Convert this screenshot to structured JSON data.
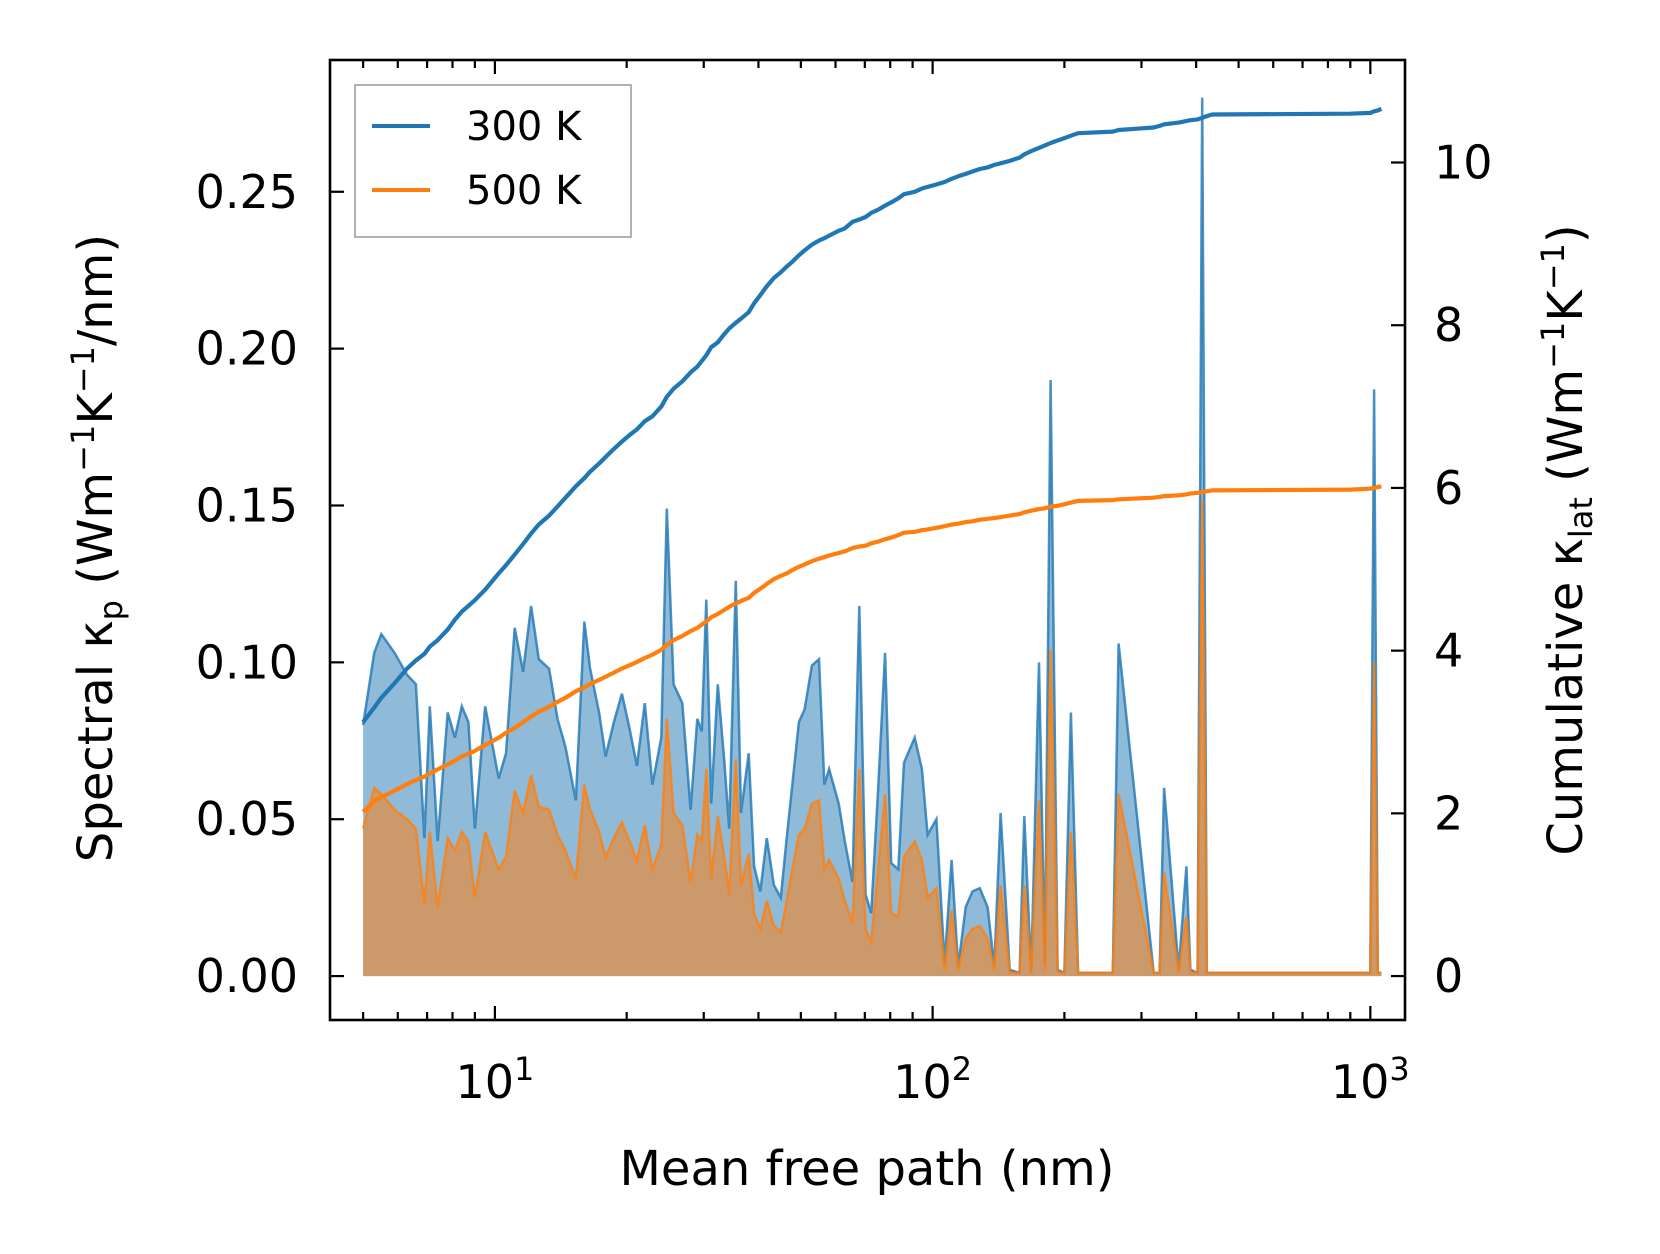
{
  "chart_data": {
    "type": "line",
    "title": "",
    "xlabel": "Mean free path (nm)",
    "ylabel_left": "Spectral κ",
    "ylabel_left_sub": "p",
    "ylabel_left_unit": {
      "open": " (Wm",
      "exp1": "−1",
      "mid": "K",
      "exp2": "−1",
      "close": "/nm)"
    },
    "ylabel_right": "Cumulative κ",
    "ylabel_right_sub": "lat",
    "ylabel_right_unit": {
      "open": " (Wm",
      "exp1": "−1",
      "mid": "K",
      "exp2": "−1",
      "close": ")"
    },
    "xscale": "log",
    "xlim": [
      4.2,
      1200
    ],
    "ylim_left": [
      -0.014,
      0.292
    ],
    "ylim_right": [
      -0.54,
      11.26
    ],
    "x_ticks": [
      {
        "value": 10,
        "base": "10",
        "exp": "1"
      },
      {
        "value": 100,
        "base": "10",
        "exp": "2"
      },
      {
        "value": 1000,
        "base": "10",
        "exp": "3"
      }
    ],
    "y_left_ticks": [
      {
        "value": 0.0,
        "label": "0.00"
      },
      {
        "value": 0.05,
        "label": "0.05"
      },
      {
        "value": 0.1,
        "label": "0.10"
      },
      {
        "value": 0.15,
        "label": "0.15"
      },
      {
        "value": 0.2,
        "label": "0.20"
      },
      {
        "value": 0.25,
        "label": "0.25"
      }
    ],
    "y_right_ticks": [
      {
        "value": 0,
        "label": "0"
      },
      {
        "value": 2,
        "label": "2"
      },
      {
        "value": 4,
        "label": "4"
      },
      {
        "value": 6,
        "label": "6"
      },
      {
        "value": 8,
        "label": "8"
      },
      {
        "value": 10,
        "label": "10"
      }
    ],
    "legend": {
      "location": "upper-left",
      "entries": [
        {
          "label": "300 K",
          "color": "#1f77b4"
        },
        {
          "label": "500 K",
          "color": "#ff7f0e"
        }
      ]
    },
    "series": [
      {
        "name": "300 K",
        "color": "#1f77b4",
        "spectral": {
          "x": [
            5.0,
            5.3,
            5.5,
            5.9,
            6.3,
            6.6,
            6.9,
            7.1,
            7.4,
            7.8,
            8.1,
            8.4,
            8.7,
            9.0,
            9.5,
            10.2,
            10.6,
            11.1,
            11.6,
            12.1,
            12.6,
            13.3,
            13.9,
            14.5,
            15.3,
            16.0,
            16.5,
            17.3,
            17.9,
            18.7,
            19.5,
            20.3,
            21.1,
            22.0,
            22.9,
            24.0,
            24.7,
            25.6,
            26.8,
            28.0,
            29.0,
            29.7,
            30.4,
            31.2,
            32.3,
            33.4,
            34.3,
            35.5,
            36.5,
            38.0,
            39.1,
            40.4,
            41.8,
            43.4,
            45.0,
            46.4,
            47.8,
            49.5,
            51.0,
            53.0,
            55.0,
            56.6,
            58.0,
            61.0,
            63.0,
            65.6,
            68.0,
            70.3,
            72.4,
            75.1,
            77.9,
            80.4,
            83.5,
            86.0,
            91.0,
            94.5,
            97.4,
            102.0,
            106.5,
            110.5,
            114.4,
            119.0,
            123.3,
            128.2,
            133.5,
            138.3,
            143.0,
            150.0,
            158.0,
            162.0,
            168.0,
            175.0,
            180.5,
            186.0,
            193.0,
            200.0,
            207.0,
            215.0,
            258.0,
            266.0,
            320.0,
            330.0,
            338.0,
            365.0,
            380.0,
            388.0,
            403.0,
            413.0,
            423.0,
            435.0,
            900.0,
            1000.0,
            1020.0,
            1040.0,
            1060.0
          ],
          "y": [
            0.08,
            0.103,
            0.109,
            0.103,
            0.096,
            0.093,
            0.044,
            0.086,
            0.043,
            0.084,
            0.076,
            0.086,
            0.081,
            0.047,
            0.086,
            0.063,
            0.071,
            0.111,
            0.097,
            0.118,
            0.101,
            0.098,
            0.082,
            0.073,
            0.056,
            0.113,
            0.098,
            0.084,
            0.07,
            0.081,
            0.09,
            0.079,
            0.067,
            0.087,
            0.061,
            0.076,
            0.149,
            0.093,
            0.087,
            0.053,
            0.082,
            0.078,
            0.12,
            0.055,
            0.093,
            0.069,
            0.047,
            0.126,
            0.052,
            0.071,
            0.035,
            0.027,
            0.044,
            0.029,
            0.025,
            0.044,
            0.061,
            0.081,
            0.085,
            0.099,
            0.101,
            0.061,
            0.066,
            0.055,
            0.043,
            0.03,
            0.118,
            0.026,
            0.02,
            0.06,
            0.103,
            0.036,
            0.034,
            0.068,
            0.076,
            0.066,
            0.045,
            0.05,
            0.004,
            0.037,
            0.003,
            0.022,
            0.027,
            0.028,
            0.022,
            0.003,
            0.052,
            0.002,
            0.001,
            0.051,
            0.001,
            0.1,
            0.004,
            0.19,
            0.002,
            0.001,
            0.084,
            0.001,
            0.001,
            0.106,
            0.001,
            0.001,
            0.06,
            0.002,
            0.035,
            0.002,
            0.001,
            0.28,
            0.001,
            0.001,
            0.001,
            0.001,
            0.187,
            0.001,
            0.001
          ]
        },
        "cumulative": {
          "x": [
            5.0,
            5.3,
            5.5,
            5.9,
            6.3,
            6.6,
            6.9,
            7.1,
            7.4,
            7.8,
            8.1,
            8.4,
            8.7,
            9.0,
            9.5,
            10.2,
            10.6,
            11.1,
            11.6,
            12.1,
            12.6,
            13.3,
            13.9,
            14.5,
            15.3,
            16.0,
            16.5,
            17.3,
            17.9,
            18.7,
            19.5,
            20.3,
            21.1,
            22.0,
            22.9,
            24.0,
            24.7,
            25.6,
            26.8,
            28.0,
            29.0,
            29.7,
            30.4,
            31.2,
            32.3,
            33.4,
            34.3,
            35.5,
            36.5,
            38.0,
            39.1,
            40.4,
            41.8,
            43.4,
            45.0,
            46.4,
            47.8,
            49.5,
            51.0,
            53.0,
            55.0,
            56.6,
            58.0,
            61.0,
            63.0,
            65.6,
            68.0,
            70.3,
            72.4,
            75.1,
            77.9,
            80.4,
            83.5,
            86.0,
            91.0,
            94.5,
            97.4,
            102.0,
            106.5,
            110.5,
            114.4,
            119.0,
            123.3,
            128.2,
            133.5,
            138.3,
            143.0,
            150.0,
            158.0,
            162.0,
            168.0,
            175.0,
            180.5,
            186.0,
            193.0,
            200.0,
            207.0,
            215.0,
            258.0,
            266.0,
            320.0,
            330.0,
            338.0,
            365.0,
            380.0,
            388.0,
            403.0,
            413.0,
            423.0,
            435.0,
            900.0,
            1000.0,
            1020.0,
            1040.0,
            1060.0
          ],
          "y": [
            3.12,
            3.3,
            3.42,
            3.6,
            3.78,
            3.88,
            3.96,
            4.05,
            4.13,
            4.26,
            4.38,
            4.48,
            4.55,
            4.62,
            4.75,
            4.95,
            5.05,
            5.18,
            5.31,
            5.44,
            5.55,
            5.66,
            5.77,
            5.88,
            6.02,
            6.12,
            6.2,
            6.3,
            6.38,
            6.48,
            6.57,
            6.65,
            6.72,
            6.82,
            6.88,
            7.0,
            7.12,
            7.22,
            7.31,
            7.42,
            7.49,
            7.56,
            7.63,
            7.73,
            7.79,
            7.89,
            7.96,
            8.03,
            8.08,
            8.16,
            8.27,
            8.37,
            8.48,
            8.58,
            8.65,
            8.72,
            8.78,
            8.86,
            8.92,
            8.99,
            9.04,
            9.07,
            9.1,
            9.16,
            9.19,
            9.27,
            9.3,
            9.33,
            9.38,
            9.42,
            9.47,
            9.51,
            9.56,
            9.61,
            9.64,
            9.68,
            9.7,
            9.73,
            9.76,
            9.8,
            9.83,
            9.86,
            9.89,
            9.92,
            9.94,
            9.97,
            9.99,
            10.02,
            10.06,
            10.1,
            10.14,
            10.18,
            10.21,
            10.24,
            10.27,
            10.3,
            10.33,
            10.36,
            10.38,
            10.4,
            10.43,
            10.45,
            10.47,
            10.49,
            10.51,
            10.52,
            10.53,
            10.55,
            10.57,
            10.59,
            10.6,
            10.61,
            10.63,
            10.64,
            10.66
          ]
        }
      },
      {
        "name": "500 K",
        "color": "#ff7f0e",
        "spectral": {
          "x": [
            5.0,
            5.3,
            5.5,
            5.9,
            6.3,
            6.6,
            6.9,
            7.1,
            7.4,
            7.8,
            8.1,
            8.4,
            8.7,
            9.0,
            9.5,
            10.2,
            10.6,
            11.1,
            11.6,
            12.1,
            12.6,
            13.3,
            13.9,
            14.5,
            15.3,
            16.0,
            16.5,
            17.3,
            17.9,
            18.7,
            19.5,
            20.3,
            21.1,
            22.0,
            22.9,
            24.0,
            24.7,
            25.6,
            26.8,
            28.0,
            29.0,
            29.7,
            30.4,
            31.2,
            32.3,
            33.4,
            34.3,
            35.5,
            36.5,
            38.0,
            39.1,
            40.4,
            41.8,
            43.4,
            45.0,
            46.4,
            47.8,
            49.5,
            51.0,
            53.0,
            55.0,
            56.6,
            58.0,
            61.0,
            63.0,
            65.6,
            68.0,
            70.3,
            72.4,
            75.1,
            77.9,
            80.4,
            83.5,
            86.0,
            91.0,
            94.5,
            97.4,
            102.0,
            106.5,
            110.5,
            114.4,
            119.0,
            123.3,
            128.2,
            133.5,
            138.3,
            143.0,
            150.0,
            158.0,
            162.0,
            168.0,
            175.0,
            180.5,
            186.0,
            193.0,
            200.0,
            207.0,
            215.0,
            258.0,
            266.0,
            320.0,
            330.0,
            338.0,
            365.0,
            380.0,
            388.0,
            403.0,
            413.0,
            423.0,
            435.0,
            900.0,
            1000.0,
            1020.0,
            1040.0,
            1060.0
          ],
          "y": [
            0.047,
            0.06,
            0.058,
            0.053,
            0.05,
            0.047,
            0.023,
            0.046,
            0.022,
            0.044,
            0.04,
            0.046,
            0.043,
            0.025,
            0.046,
            0.034,
            0.038,
            0.059,
            0.052,
            0.064,
            0.054,
            0.053,
            0.045,
            0.04,
            0.031,
            0.061,
            0.053,
            0.046,
            0.038,
            0.044,
            0.049,
            0.043,
            0.037,
            0.048,
            0.034,
            0.042,
            0.082,
            0.052,
            0.048,
            0.03,
            0.045,
            0.043,
            0.066,
            0.031,
            0.051,
            0.038,
            0.026,
            0.069,
            0.029,
            0.039,
            0.02,
            0.015,
            0.024,
            0.016,
            0.014,
            0.024,
            0.034,
            0.045,
            0.047,
            0.055,
            0.056,
            0.034,
            0.037,
            0.031,
            0.024,
            0.017,
            0.066,
            0.015,
            0.011,
            0.034,
            0.058,
            0.02,
            0.019,
            0.038,
            0.043,
            0.037,
            0.025,
            0.028,
            0.002,
            0.021,
            0.002,
            0.012,
            0.015,
            0.016,
            0.012,
            0.002,
            0.029,
            0.001,
            0.001,
            0.029,
            0.001,
            0.056,
            0.002,
            0.104,
            0.001,
            0.001,
            0.046,
            0.001,
            0.001,
            0.058,
            0.001,
            0.001,
            0.033,
            0.001,
            0.019,
            0.001,
            0.001,
            0.152,
            0.001,
            0.001,
            0.001,
            0.001,
            0.1,
            0.001,
            0.001
          ]
        },
        "cumulative": {
          "x": [
            5.0,
            5.3,
            5.5,
            5.9,
            6.3,
            6.6,
            6.9,
            7.1,
            7.4,
            7.8,
            8.1,
            8.4,
            8.7,
            9.0,
            9.5,
            10.2,
            10.6,
            11.1,
            11.6,
            12.1,
            12.6,
            13.3,
            13.9,
            14.5,
            15.3,
            16.0,
            16.5,
            17.3,
            17.9,
            18.7,
            19.5,
            20.3,
            21.1,
            22.0,
            22.9,
            24.0,
            24.7,
            25.6,
            26.8,
            28.0,
            29.0,
            29.7,
            30.4,
            31.2,
            32.3,
            33.4,
            34.3,
            35.5,
            36.5,
            38.0,
            39.1,
            40.4,
            41.8,
            43.4,
            45.0,
            46.4,
            47.8,
            49.5,
            51.0,
            53.0,
            55.0,
            56.6,
            58.0,
            61.0,
            63.0,
            65.6,
            68.0,
            70.3,
            72.4,
            75.1,
            77.9,
            80.4,
            83.5,
            86.0,
            91.0,
            94.5,
            97.4,
            102.0,
            106.5,
            110.5,
            114.4,
            119.0,
            123.3,
            128.2,
            133.5,
            138.3,
            143.0,
            150.0,
            158.0,
            162.0,
            168.0,
            175.0,
            180.5,
            186.0,
            193.0,
            200.0,
            207.0,
            215.0,
            258.0,
            266.0,
            320.0,
            330.0,
            338.0,
            365.0,
            380.0,
            388.0,
            403.0,
            413.0,
            423.0,
            435.0,
            900.0,
            1000.0,
            1020.0,
            1040.0,
            1060.0
          ],
          "y": [
            2.02,
            2.15,
            2.2,
            2.28,
            2.36,
            2.41,
            2.45,
            2.49,
            2.54,
            2.6,
            2.65,
            2.7,
            2.73,
            2.77,
            2.84,
            2.93,
            2.99,
            3.05,
            3.12,
            3.19,
            3.25,
            3.31,
            3.37,
            3.42,
            3.5,
            3.55,
            3.59,
            3.64,
            3.68,
            3.73,
            3.78,
            3.82,
            3.86,
            3.91,
            3.95,
            4.01,
            4.07,
            4.13,
            4.18,
            4.24,
            4.28,
            4.32,
            4.36,
            4.41,
            4.45,
            4.5,
            4.54,
            4.58,
            4.61,
            4.65,
            4.71,
            4.76,
            4.82,
            4.88,
            4.92,
            4.95,
            4.99,
            5.03,
            5.06,
            5.1,
            5.13,
            5.15,
            5.17,
            5.2,
            5.22,
            5.26,
            5.28,
            5.29,
            5.32,
            5.34,
            5.37,
            5.39,
            5.42,
            5.45,
            5.46,
            5.48,
            5.49,
            5.51,
            5.53,
            5.55,
            5.56,
            5.58,
            5.59,
            5.61,
            5.62,
            5.63,
            5.64,
            5.66,
            5.68,
            5.7,
            5.72,
            5.74,
            5.75,
            5.77,
            5.78,
            5.8,
            5.82,
            5.84,
            5.85,
            5.86,
            5.88,
            5.89,
            5.9,
            5.91,
            5.92,
            5.93,
            5.94,
            5.95,
            5.96,
            5.97,
            5.98,
            5.99,
            6.0,
            6.01,
            6.02
          ]
        }
      }
    ]
  }
}
